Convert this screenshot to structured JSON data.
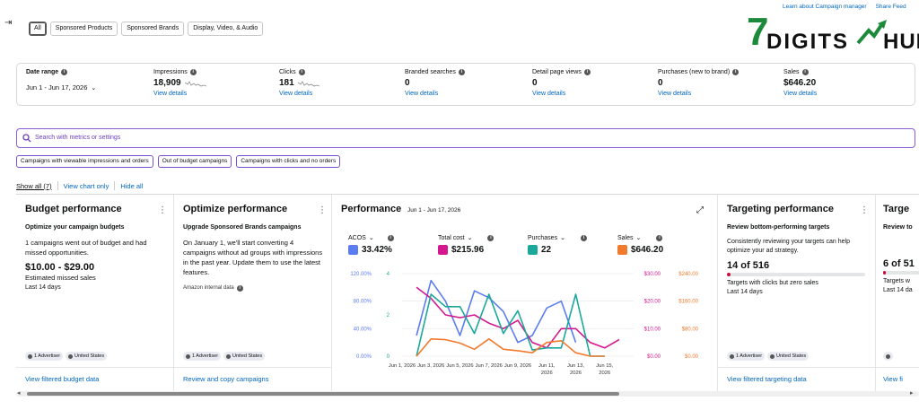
{
  "filters": {
    "tabs": [
      {
        "label": "All",
        "active": true
      },
      {
        "label": "Sponsored Products",
        "active": false
      },
      {
        "label": "Sponsored Brands",
        "active": false
      },
      {
        "label": "Display, Video, & Audio",
        "active": false
      }
    ]
  },
  "top_links": {
    "learn": "Learn about Campaign manager",
    "share": "Share Feed"
  },
  "logo": {
    "seven": "7",
    "text1": "DIGITS",
    "text2": "HUB"
  },
  "metrics": {
    "date_range": {
      "label": "Date range",
      "value": "Jun 1 - Jun 17, 2026"
    },
    "items": [
      {
        "label": "Impressions",
        "value": "18,909",
        "link": "View details",
        "sparkline": true
      },
      {
        "label": "Clicks",
        "value": "181",
        "link": "View details",
        "sparkline": true
      },
      {
        "label": "Branded searches",
        "value": "0",
        "link": "View details",
        "sparkline": false
      },
      {
        "label": "Detail page views",
        "value": "0",
        "link": "View details",
        "sparkline": false
      },
      {
        "label": "Purchases (new to brand)",
        "value": "0",
        "link": "View details",
        "sparkline": false
      },
      {
        "label": "Sales",
        "value": "$646.20",
        "link": "View details",
        "sparkline": false
      }
    ]
  },
  "search": {
    "placeholder": "Search with metrics or settings"
  },
  "chips": [
    "Campaigns with viewable impressions and orders",
    "Out of budget campaigns",
    "Campaigns with clicks and no orders"
  ],
  "show": {
    "all": "Show all (7)",
    "chart": "View chart only",
    "hide": "Hide all"
  },
  "cards": {
    "budget": {
      "title": "Budget performance",
      "subtitle": "Optimize your campaign budgets",
      "body": "1 campaigns went out of budget and had missed opportunities.",
      "big": "$10.00 - $29.00",
      "big_label": "Estimated missed sales",
      "period": "Last 14 days",
      "badges": [
        "1 Advertiser",
        "United States"
      ],
      "footer": "View filtered budget data"
    },
    "optimize": {
      "title": "Optimize performance",
      "subtitle": "Upgrade Sponsored Brands campaigns",
      "body": "On January 1, we'll start converting 4 campaigns without ad groups with impressions in the past year. Update them to use the latest features.",
      "source": "Amazon internal data",
      "badges": [
        "1 Advertiser",
        "United States"
      ],
      "footer": "Review and copy campaigns"
    },
    "performance": {
      "title": "Performance",
      "date": "Jun 1 - Jun 17, 2026",
      "kpis": [
        {
          "label": "ACOS",
          "value": "33.42%",
          "color": "#5b7cf0",
          "dropdown": true
        },
        {
          "label": "Total cost",
          "value": "$215.96",
          "color": "#d4178f",
          "dropdown": true
        },
        {
          "label": "Purchases",
          "value": "22",
          "color": "#1aa89a",
          "dropdown": true
        },
        {
          "label": "Sales",
          "value": "$646.20",
          "color": "#f07a2e",
          "dropdown": true
        }
      ]
    },
    "targeting": {
      "title": "Targeting performance",
      "subtitle": "Review bottom-performing targets",
      "body": "Consistently reviewing your targets can help optimize your ad strategy.",
      "big": "14 of 516",
      "progress": 0.027,
      "big_label": "Targets with clicks but zero sales",
      "period": "Last 14 days",
      "badges": [
        "1 Advertiser",
        "United States"
      ],
      "footer": "View filtered targeting data"
    },
    "partial": {
      "title": "Targe",
      "subtitle": "Review to",
      "big": "6 of 51",
      "big_label": "Targets w",
      "period": "Last 14 da",
      "footer": "View fi"
    }
  },
  "chart_data": {
    "type": "line",
    "x": [
      "Jun 1, 2026",
      "Jun 2",
      "Jun 3, 2026",
      "Jun 4",
      "Jun 5, 2026",
      "Jun 6",
      "Jun 7, 2026",
      "Jun 8",
      "Jun 9, 2026",
      "Jun 10",
      "Jun 11, 2026",
      "Jun 12",
      "Jun 13, 2026",
      "Jun 14",
      "Jun 15, 2026",
      "Jun 16",
      "Jun 17"
    ],
    "x_tick_labels": [
      "Jun 1, 2026",
      "Jun 3, 2026",
      "Jun 5, 2026",
      "Jun 7, 2026",
      "Jun 9, 2026",
      "Jun 11, 2026",
      "Jun 13, 2026",
      "Jun 15, 2026"
    ],
    "axes": {
      "acos": {
        "ticks": [
          "0.00%",
          "40.00%",
          "80.00%",
          "120.00%"
        ],
        "range": [
          0,
          120
        ],
        "color": "#5b7cf0"
      },
      "purchases": {
        "ticks": [
          "0",
          "2",
          "4"
        ],
        "range": [
          0,
          4
        ],
        "color": "#1aa89a"
      },
      "cost": {
        "ticks": [
          "$0.00",
          "$10.00",
          "$20.00",
          "$30.00"
        ],
        "range": [
          0,
          30
        ],
        "color": "#d4178f"
      },
      "sales": {
        "ticks": [
          "$0.00",
          "$80.00",
          "$160.00",
          "$240.00"
        ],
        "range": [
          0,
          240
        ],
        "color": "#f07a2e"
      }
    },
    "series": [
      {
        "name": "ACOS",
        "axis": "acos",
        "color": "#5b7cf0",
        "values": [
          null,
          30,
          110,
          80,
          30,
          95,
          85,
          65,
          20,
          30,
          70,
          80,
          20,
          null,
          null,
          null,
          null
        ]
      },
      {
        "name": "Total cost",
        "axis": "cost",
        "color": "#d4178f",
        "values": [
          null,
          25,
          21,
          15,
          14,
          15,
          12,
          10,
          13,
          5,
          3,
          10,
          10,
          5,
          3,
          6,
          null
        ]
      },
      {
        "name": "Purchases",
        "axis": "purchases",
        "color": "#1aa89a",
        "values": [
          null,
          0,
          3,
          2.4,
          2.4,
          1.1,
          3,
          1.1,
          2.2,
          0.3,
          0.4,
          0.4,
          3,
          0,
          0,
          null,
          null
        ]
      },
      {
        "name": "Sales",
        "axis": "sales",
        "color": "#f07a2e",
        "values": [
          null,
          0,
          50,
          48,
          38,
          20,
          50,
          20,
          16,
          10,
          40,
          45,
          10,
          0,
          0,
          null,
          null
        ]
      }
    ]
  }
}
